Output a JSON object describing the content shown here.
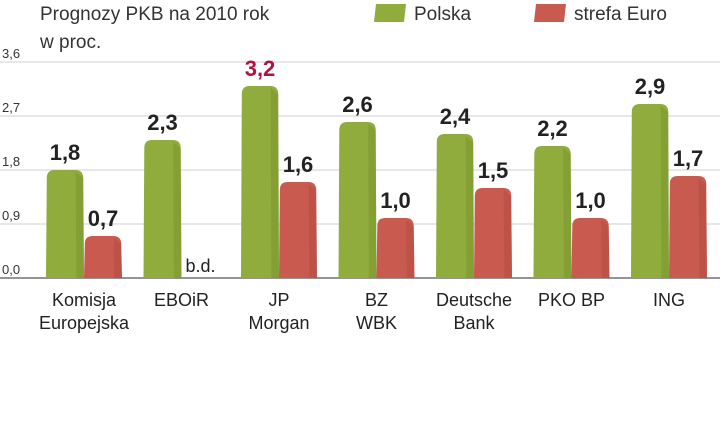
{
  "title_lines": [
    "Prognozy PKB na 2010 rok",
    "w proc."
  ],
  "legend": [
    {
      "label": "Polska",
      "color": "#8fac3c"
    },
    {
      "label": "strefa Euro",
      "color": "#c85a4f"
    }
  ],
  "colors": {
    "polska": "#8fac3c",
    "euro": "#c85a4f",
    "highlight": "#b3123f",
    "grid": "#cfcfcf"
  },
  "chart_data": {
    "type": "bar",
    "title": "Prognozy PKB na 2010 rok w proc.",
    "categories": [
      [
        "Komisja",
        "Europejska"
      ],
      [
        "EBOiR"
      ],
      [
        "JP",
        "Morgan"
      ],
      [
        "BZ",
        "WBK"
      ],
      [
        "Deutsche",
        "Bank"
      ],
      [
        "PKO BP"
      ],
      [
        "ING"
      ]
    ],
    "series": [
      {
        "name": "Polska",
        "values": [
          1.8,
          2.3,
          3.2,
          2.6,
          2.4,
          2.2,
          2.9
        ],
        "labels": [
          "1,8",
          "2,3",
          "3,2",
          "2,6",
          "2,4",
          "2,2",
          "2,9"
        ]
      },
      {
        "name": "strefa Euro",
        "values": [
          0.7,
          null,
          1.6,
          1.0,
          1.5,
          1.0,
          1.7
        ],
        "labels": [
          "0,7",
          "b.d.",
          "1,6",
          "1,0",
          "1,5",
          "1,0",
          "1,7"
        ]
      }
    ],
    "highlight": {
      "series": 0,
      "index": 2
    },
    "yticks": [
      0,
      0.9,
      1.8,
      2.7,
      3.6
    ],
    "ytick_labels": [
      "0,0",
      "0,9",
      "1,8",
      "2,7",
      "3,6"
    ],
    "ylim": [
      0,
      3.6
    ],
    "grid": true,
    "legend_position": "top-right"
  }
}
